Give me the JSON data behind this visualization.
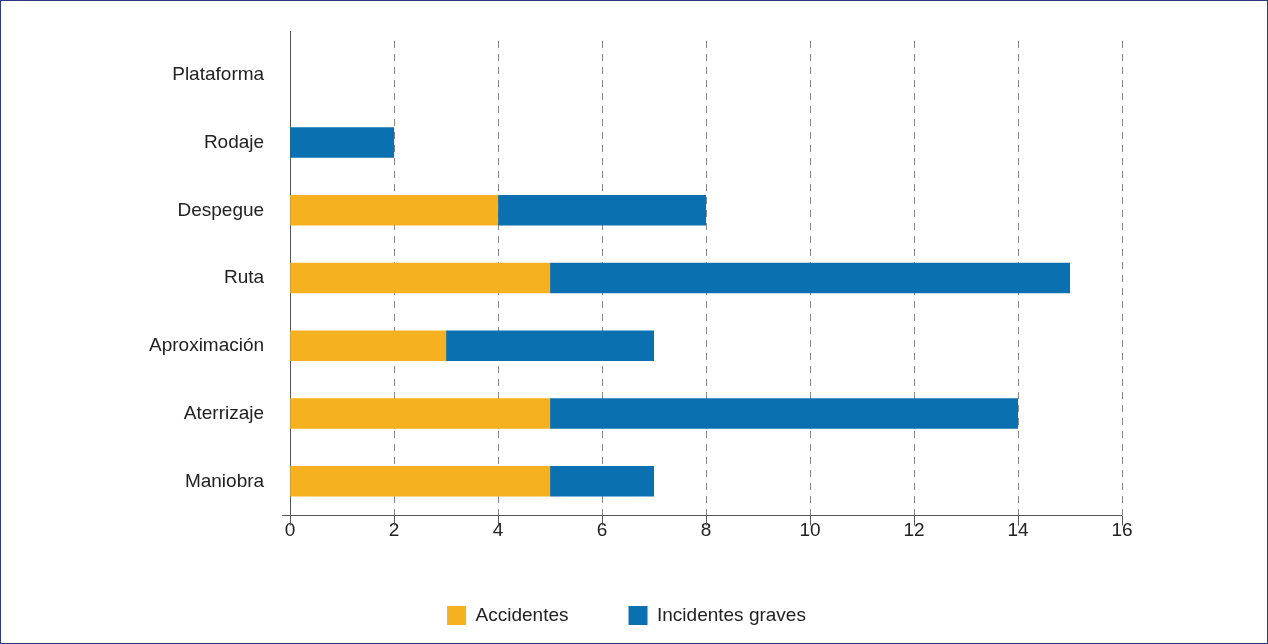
{
  "chart_data": {
    "type": "bar",
    "orientation": "horizontal",
    "stacked": true,
    "categories": [
      "Plataforma",
      "Rodaje",
      "Despegue",
      "Ruta",
      "Aproximación",
      "Aterrizaje",
      "Maniobra"
    ],
    "series": [
      {
        "name": "Accidentes",
        "color": "#f6b120",
        "values": [
          0,
          0,
          4,
          5,
          3,
          5,
          5
        ]
      },
      {
        "name": "Incidentes graves",
        "color": "#0a70b0",
        "values": [
          0,
          2,
          4,
          10,
          4,
          9,
          2
        ]
      }
    ],
    "xlim": [
      0,
      16
    ],
    "xticks": [
      0,
      2,
      4,
      6,
      8,
      10,
      12,
      14,
      16
    ],
    "grid": "x",
    "line_style": "dashed",
    "legend": "bottom"
  }
}
